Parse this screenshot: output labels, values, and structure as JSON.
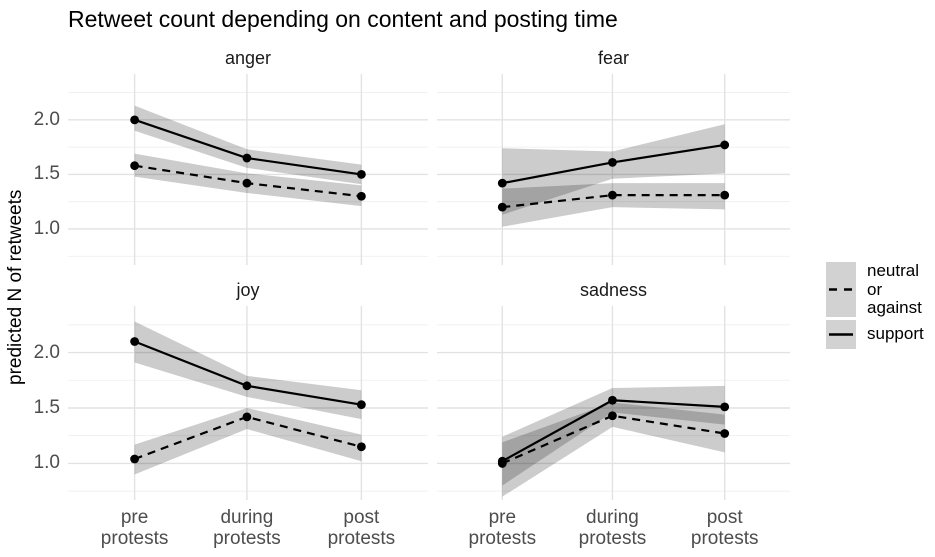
{
  "title": "Retweet count depending on content and posting time",
  "y_axis": {
    "title": "predicted N of retweets",
    "tick_labels": [
      "2.0",
      "1.5",
      "1.0"
    ],
    "tick_values": [
      2.0,
      1.5,
      1.0
    ]
  },
  "x_axis": {
    "tick_labels": [
      "pre\nprotests",
      "during\nprotests",
      "post\nprotests"
    ]
  },
  "legend": {
    "entries": [
      {
        "label": "neutral\nor\nagainst",
        "style": "dashed"
      },
      {
        "label": "support",
        "style": "solid"
      }
    ]
  },
  "colors": {
    "line": "#000000",
    "ribbon": "#000000",
    "ribbon_opacity": 0.2,
    "grid_major": "#e2e2e2",
    "grid_minor": "#eeeeee",
    "legend_key_bg": "#d2d2d2",
    "background": "#ffffff"
  },
  "chart_data": {
    "type": "line",
    "title": "Retweet count depending on content and posting time",
    "xlabel": "",
    "ylabel": "predicted N of retweets",
    "ylim": [
      0.67,
      2.42
    ],
    "y_major_ticks": [
      1.0,
      1.5,
      2.0
    ],
    "y_minor_ticks": [
      0.75,
      1.25,
      1.75,
      2.25
    ],
    "grid": true,
    "legend_position": "right",
    "categories": [
      "pre protests",
      "during protests",
      "post protests"
    ],
    "facets": [
      {
        "name": "anger",
        "series": [
          {
            "name": "support",
            "style": "solid",
            "values": [
              2.0,
              1.65,
              1.5
            ],
            "ci_upper": [
              2.13,
              1.73,
              1.59
            ],
            "ci_lower": [
              1.9,
              1.56,
              1.41
            ]
          },
          {
            "name": "neutral or against",
            "style": "dashed",
            "values": [
              1.58,
              1.42,
              1.3
            ],
            "ci_upper": [
              1.69,
              1.51,
              1.4
            ],
            "ci_lower": [
              1.48,
              1.33,
              1.21
            ]
          }
        ]
      },
      {
        "name": "fear",
        "series": [
          {
            "name": "support",
            "style": "solid",
            "values": [
              1.42,
              1.61,
              1.77
            ],
            "ci_upper": [
              1.74,
              1.71,
              1.96
            ],
            "ci_lower": [
              1.13,
              1.46,
              1.51
            ]
          },
          {
            "name": "neutral or against",
            "style": "dashed",
            "values": [
              1.2,
              1.31,
              1.31
            ],
            "ci_upper": [
              1.37,
              1.42,
              1.42
            ],
            "ci_lower": [
              1.02,
              1.2,
              1.18
            ]
          }
        ]
      },
      {
        "name": "joy",
        "series": [
          {
            "name": "support",
            "style": "solid",
            "values": [
              2.1,
              1.7,
              1.53
            ],
            "ci_upper": [
              2.28,
              1.79,
              1.66
            ],
            "ci_lower": [
              1.91,
              1.6,
              1.4
            ]
          },
          {
            "name": "neutral or against",
            "style": "dashed",
            "values": [
              1.04,
              1.42,
              1.15
            ],
            "ci_upper": [
              1.17,
              1.5,
              1.26
            ],
            "ci_lower": [
              0.9,
              1.31,
              1.02
            ]
          }
        ]
      },
      {
        "name": "sadness",
        "series": [
          {
            "name": "support",
            "style": "solid",
            "values": [
              1.02,
              1.57,
              1.51
            ],
            "ci_upper": [
              1.24,
              1.68,
              1.7
            ],
            "ci_lower": [
              0.8,
              1.46,
              1.35
            ]
          },
          {
            "name": "neutral or against",
            "style": "dashed",
            "values": [
              1.0,
              1.43,
              1.27
            ],
            "ci_upper": [
              1.19,
              1.55,
              1.44
            ],
            "ci_lower": [
              0.7,
              1.33,
              1.1
            ]
          }
        ]
      }
    ]
  }
}
